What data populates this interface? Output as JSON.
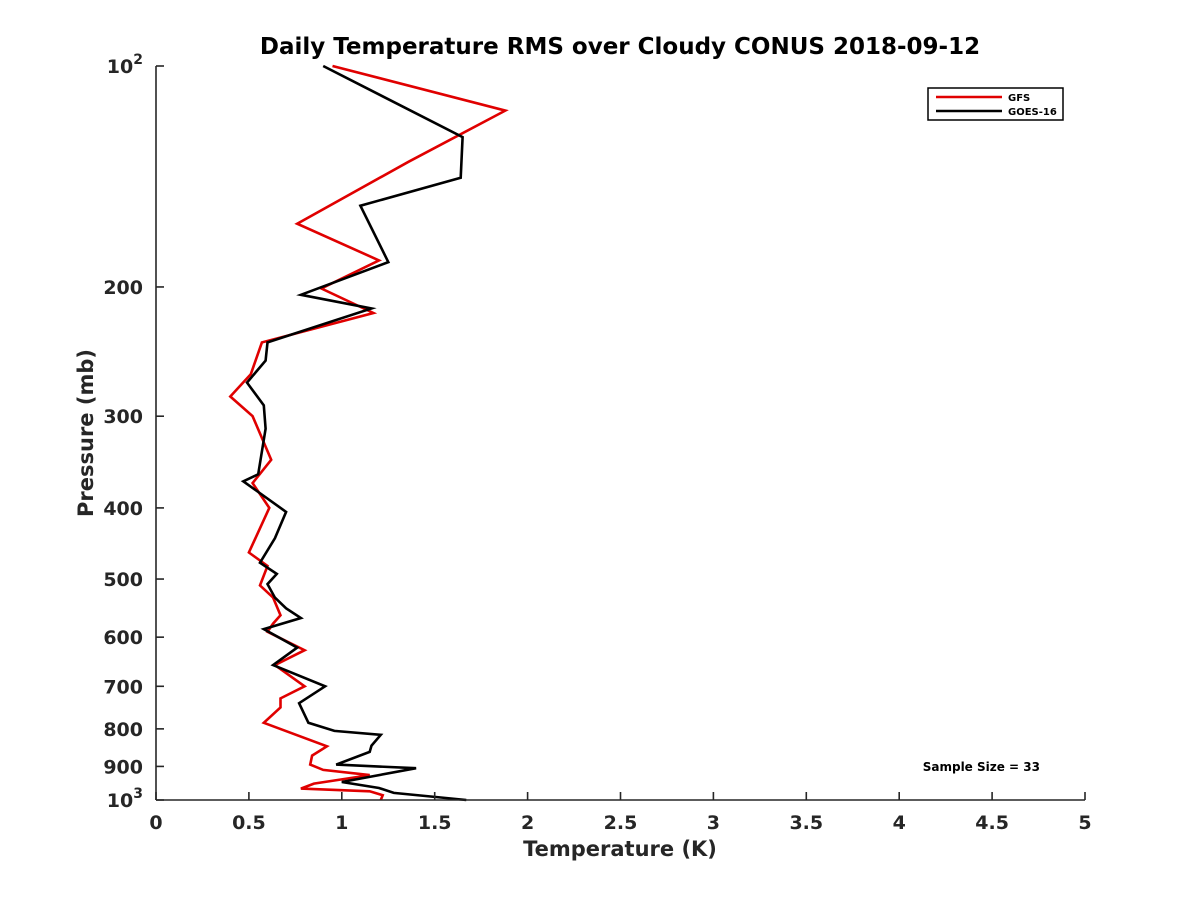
{
  "chart_data": {
    "type": "line",
    "title": "Daily Temperature RMS over Cloudy CONUS 2018-09-12",
    "xlabel": "Temperature (K)",
    "ylabel": "Pressure (mb)",
    "xlim": [
      0,
      5
    ],
    "ylim": [
      100,
      1000
    ],
    "y_scale": "log",
    "y_reversed": true,
    "x_ticks": [
      "0",
      "0.5",
      "1",
      "1.5",
      "2",
      "2.5",
      "3",
      "3.5",
      "4",
      "4.5",
      "5"
    ],
    "y_ticks": [
      {
        "value": 100,
        "base": "10",
        "exp": "2"
      },
      {
        "value": 200,
        "label": "200"
      },
      {
        "value": 300,
        "label": "300"
      },
      {
        "value": 400,
        "label": "400"
      },
      {
        "value": 500,
        "label": "500"
      },
      {
        "value": 600,
        "label": "600"
      },
      {
        "value": 700,
        "label": "700"
      },
      {
        "value": 800,
        "label": "800"
      },
      {
        "value": 900,
        "label": "900"
      },
      {
        "value": 1000,
        "base": "10",
        "exp": "3"
      }
    ],
    "grid": false,
    "legend_position": "top-right",
    "annotation": "Sample Size = 33",
    "series": [
      {
        "name": "GFS",
        "color": "#e00000",
        "points": [
          [
            0.95,
            100
          ],
          [
            1.88,
            115
          ],
          [
            1.36,
            135
          ],
          [
            0.76,
            164
          ],
          [
            1.2,
            184
          ],
          [
            0.89,
            201
          ],
          [
            1.17,
            217
          ],
          [
            0.57,
            238
          ],
          [
            0.51,
            263
          ],
          [
            0.4,
            282
          ],
          [
            0.52,
            300
          ],
          [
            0.62,
            344
          ],
          [
            0.52,
            370
          ],
          [
            0.61,
            400
          ],
          [
            0.5,
            460
          ],
          [
            0.6,
            480
          ],
          [
            0.56,
            510
          ],
          [
            0.63,
            530
          ],
          [
            0.67,
            560
          ],
          [
            0.63,
            575
          ],
          [
            0.6,
            590
          ],
          [
            0.8,
            625
          ],
          [
            0.64,
            655
          ],
          [
            0.8,
            700
          ],
          [
            0.67,
            727
          ],
          [
            0.67,
            748
          ],
          [
            0.58,
            785
          ],
          [
            0.92,
            845
          ],
          [
            0.84,
            870
          ],
          [
            0.83,
            895
          ],
          [
            0.9,
            910
          ],
          [
            1.15,
            925
          ],
          [
            0.85,
            950
          ],
          [
            0.78,
            965
          ],
          [
            1.15,
            973
          ],
          [
            1.22,
            985
          ],
          [
            1.21,
            1000
          ]
        ]
      },
      {
        "name": "GOES-16",
        "color": "#000000",
        "points": [
          [
            0.9,
            100
          ],
          [
            1.65,
            125
          ],
          [
            1.64,
            142
          ],
          [
            1.1,
            155
          ],
          [
            1.25,
            185
          ],
          [
            0.78,
            205
          ],
          [
            1.16,
            214
          ],
          [
            0.6,
            238
          ],
          [
            0.59,
            252
          ],
          [
            0.49,
            270
          ],
          [
            0.58,
            290
          ],
          [
            0.59,
            312
          ],
          [
            0.55,
            360
          ],
          [
            0.47,
            368
          ],
          [
            0.7,
            405
          ],
          [
            0.64,
            440
          ],
          [
            0.56,
            475
          ],
          [
            0.65,
            492
          ],
          [
            0.6,
            508
          ],
          [
            0.64,
            530
          ],
          [
            0.7,
            548
          ],
          [
            0.78,
            565
          ],
          [
            0.58,
            585
          ],
          [
            0.76,
            620
          ],
          [
            0.63,
            655
          ],
          [
            0.91,
            700
          ],
          [
            0.77,
            738
          ],
          [
            0.82,
            785
          ],
          [
            0.96,
            805
          ],
          [
            1.21,
            815
          ],
          [
            1.16,
            843
          ],
          [
            1.15,
            860
          ],
          [
            0.97,
            895
          ],
          [
            1.4,
            905
          ],
          [
            1.0,
            945
          ],
          [
            1.2,
            963
          ],
          [
            1.28,
            978
          ],
          [
            1.67,
            1000
          ]
        ]
      }
    ]
  }
}
